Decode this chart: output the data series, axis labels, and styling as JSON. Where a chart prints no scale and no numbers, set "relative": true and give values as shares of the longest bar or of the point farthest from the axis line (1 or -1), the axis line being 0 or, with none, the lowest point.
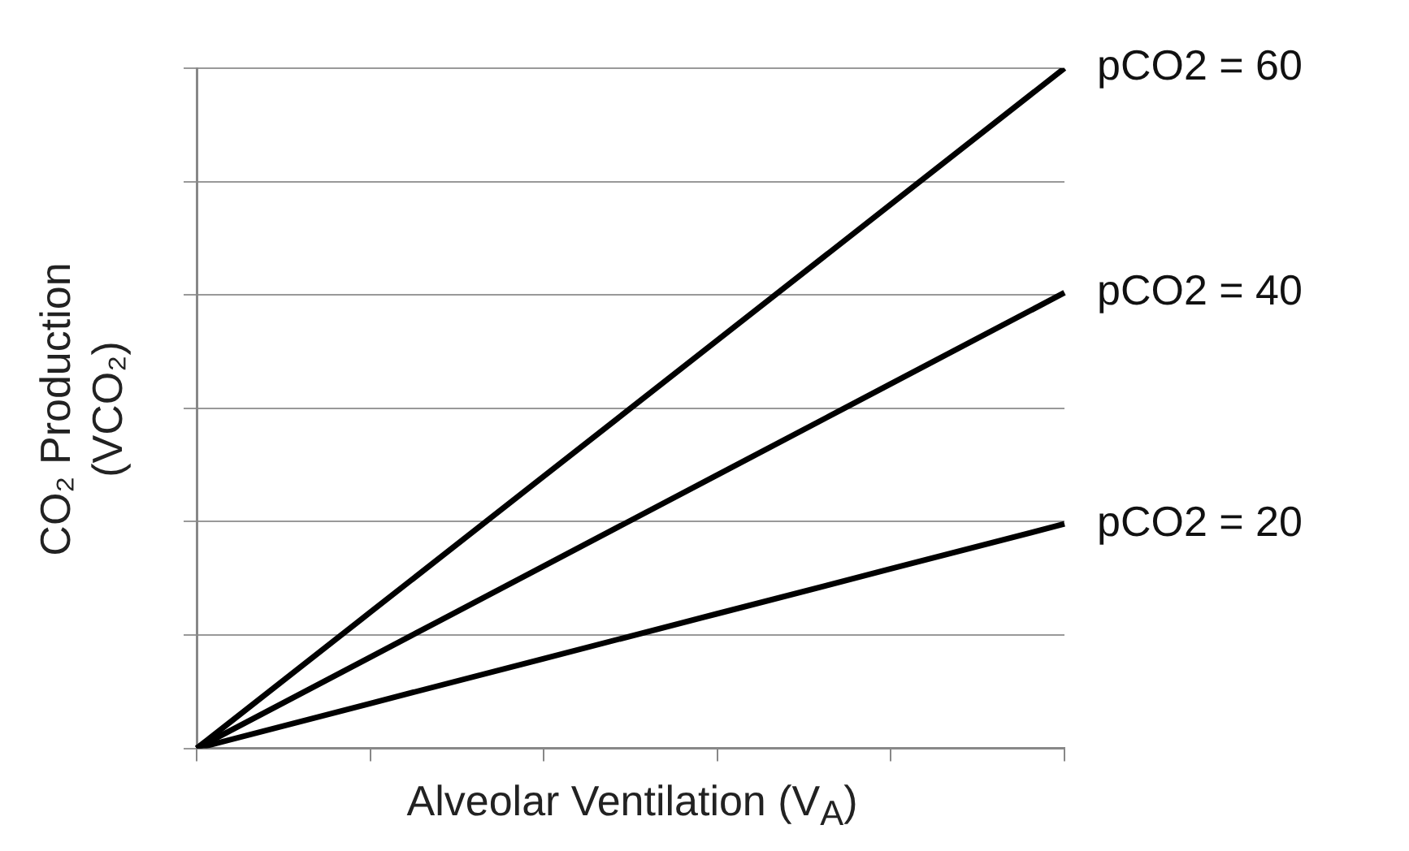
{
  "chart_data": {
    "type": "line",
    "relative": true,
    "xlabel": "Alveolar Ventilation (V$_{A}$)",
    "ylabel": "CO₂ Production (VCO₂)",
    "categories": [
      null,
      null,
      null,
      null,
      null,
      null
    ],
    "grid": "y",
    "legend": false,
    "marker": "none",
    "line_style": "solid",
    "series": [
      {
        "name": "pCO2 = 60",
        "color": "#000000",
        "values": [
          0,
          0.2,
          0.4,
          0.6,
          0.8,
          1
        ]
      },
      {
        "name": "pCO2 = 40",
        "color": "#000000",
        "values": [
          0,
          0.134,
          0.268,
          0.402,
          0.536,
          0.67
        ]
      },
      {
        "name": "pCO2 = 20",
        "color": "#000000",
        "values": [
          0,
          0.066,
          0.132,
          0.198,
          0.264,
          0.33
        ]
      }
    ]
  }
}
